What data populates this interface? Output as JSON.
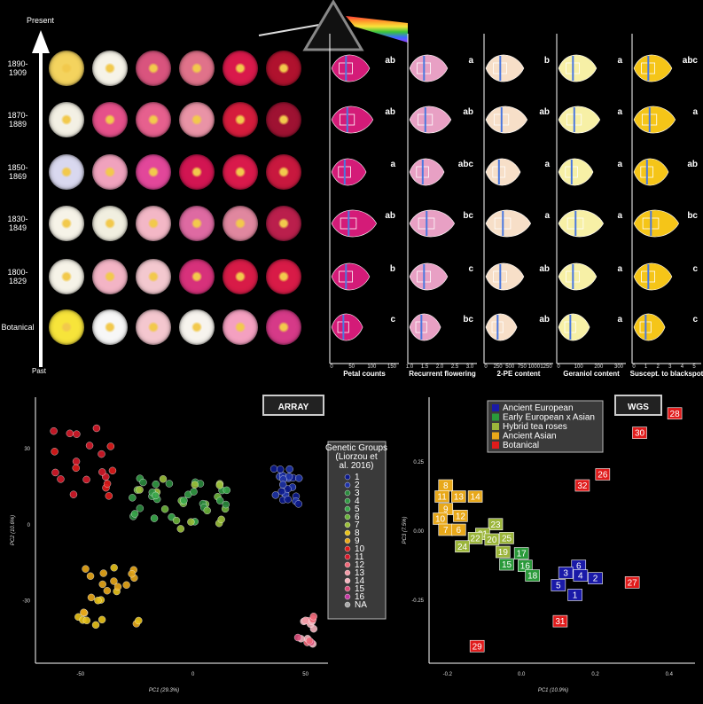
{
  "timeline": {
    "present_label": "Present",
    "past_label": "Past",
    "periods": [
      "1890-\n1909",
      "1870-\n1889",
      "1850-\n1869",
      "1830-\n1849",
      "1800-\n1829",
      "Botanical"
    ]
  },
  "flower_colors": [
    [
      "#f4d35e",
      "#f6f3e8",
      "#d9547e",
      "#e0728a",
      "#d9194b",
      "#b0122e"
    ],
    [
      "#f3f0e4",
      "#e5508a",
      "#e6608e",
      "#e993a6",
      "#d51c3c",
      "#9e1232"
    ],
    [
      "#d9d8ef",
      "#f0a2bd",
      "#e2479a",
      "#d21552",
      "#d9194b",
      "#c8183e"
    ],
    [
      "#f6f3e8",
      "#f1efe0",
      "#f3b7c6",
      "#de6aa2",
      "#e0879f",
      "#ba1f4c"
    ],
    [
      "#f6f3e8",
      "#f3b4c5",
      "#f3c8cf",
      "#d7317b",
      "#d81b47",
      "#d81b47"
    ],
    [
      "#f7e43a",
      "#f7f7f7",
      "#f4c7cf",
      "#f7f4ee",
      "#f4a0c0",
      "#d63a88"
    ]
  ],
  "violins": [
    {
      "name": "petal-counts",
      "label": "Petal counts",
      "fill": "#d41b78",
      "ticks": [
        "0",
        "50",
        "100",
        "150"
      ],
      "letters": [
        "ab",
        "ab",
        "a",
        "ab",
        "b",
        "c"
      ]
    },
    {
      "name": "recurrent-flowering",
      "label": "Recurrent flowering",
      "fill": "#e8a0c4",
      "ticks": [
        "1.0",
        "1.5",
        "2.0",
        "2.5",
        "3.0"
      ],
      "letters": [
        "a",
        "ab",
        "abc",
        "bc",
        "c",
        "bc"
      ]
    },
    {
      "name": "2pe-content",
      "label": "2-PE content",
      "fill": "#f7dfc8",
      "ticks": [
        "0",
        "250",
        "500",
        "750",
        "1000",
        "1250"
      ],
      "letters": [
        "b",
        "ab",
        "a",
        "a",
        "ab",
        "ab"
      ]
    },
    {
      "name": "geraniol-content",
      "label": "Geraniol content",
      "fill": "#f7f0a6",
      "ticks": [
        "0",
        "100",
        "200",
        "300"
      ],
      "letters": [
        "a",
        "a",
        "a",
        "a",
        "a",
        "a"
      ]
    },
    {
      "name": "blackspot",
      "label": "Suscept. to blackspot",
      "fill": "#f5c518",
      "ticks": [
        "0",
        "1",
        "2",
        "3",
        "4",
        "5"
      ],
      "letters": [
        "abc",
        "a",
        "ab",
        "bc",
        "c",
        "c"
      ]
    }
  ],
  "array_plot": {
    "title": "ARRAY",
    "xlabel": "PC1 (29.3%)",
    "ylabel": "PC2 (10.6%)",
    "xticks": [
      "-50",
      "0",
      "50"
    ],
    "yticks": [
      "30",
      "0",
      "-30"
    ],
    "legend_title": "Genetic Groups\n(Liorzou et\nal. 2016)",
    "legend_items": [
      {
        "label": "1",
        "color": "#0c1a8c"
      },
      {
        "label": "2",
        "color": "#1f33a8"
      },
      {
        "label": "3",
        "color": "#2b8a3e"
      },
      {
        "label": "4",
        "color": "#329944"
      },
      {
        "label": "5",
        "color": "#39a84b"
      },
      {
        "label": "6",
        "color": "#6cb33a"
      },
      {
        "label": "7",
        "color": "#9bbf3a"
      },
      {
        "label": "8",
        "color": "#e8c21a"
      },
      {
        "label": "9",
        "color": "#e8a81a"
      },
      {
        "label": "10",
        "color": "#e01b1b"
      },
      {
        "label": "11",
        "color": "#d51a2a"
      },
      {
        "label": "12",
        "color": "#f06a7a"
      },
      {
        "label": "13",
        "color": "#f29aa6"
      },
      {
        "label": "14",
        "color": "#f4b3bd"
      },
      {
        "label": "15",
        "color": "#d94d7a"
      },
      {
        "label": "16",
        "color": "#c43aa2"
      },
      {
        "label": "NA",
        "color": "#aaaaaa"
      }
    ]
  },
  "wgs_plot": {
    "title": "WGS",
    "xlabel": "PC1 (10.9%)",
    "ylabel": "PC3 (7.5%)",
    "xticks": [
      "-0.2",
      "0.0",
      "0.2",
      "0.4"
    ],
    "yticks": [
      "0.25",
      "0.00",
      "-0.25"
    ],
    "legend_items": [
      {
        "label": "Ancient European",
        "color": "#1a1aa8"
      },
      {
        "label": "Early European x Asian",
        "color": "#2a9a3a"
      },
      {
        "label": "Hybrid tea roses",
        "color": "#9bb53a"
      },
      {
        "label": "Ancient Asian",
        "color": "#e8a81a"
      },
      {
        "label": "Botanical",
        "color": "#e01b1b"
      }
    ],
    "points": [
      {
        "id": "28",
        "x": 0.415,
        "y": 0.42,
        "color": "#e01b1b"
      },
      {
        "id": "30",
        "x": 0.32,
        "y": 0.35,
        "color": "#e01b1b"
      },
      {
        "id": "26",
        "x": 0.22,
        "y": 0.2,
        "color": "#e01b1b"
      },
      {
        "id": "32",
        "x": 0.165,
        "y": 0.16,
        "color": "#e01b1b"
      },
      {
        "id": "27",
        "x": 0.3,
        "y": -0.19,
        "color": "#e01b1b"
      },
      {
        "id": "31",
        "x": 0.105,
        "y": -0.33,
        "color": "#e01b1b"
      },
      {
        "id": "29",
        "x": -0.12,
        "y": -0.42,
        "color": "#e01b1b"
      },
      {
        "id": "6",
        "x": 0.155,
        "y": -0.13,
        "color": "#1a1aa8"
      },
      {
        "id": "3",
        "x": 0.12,
        "y": -0.155,
        "color": "#1a1aa8"
      },
      {
        "id": "4",
        "x": 0.16,
        "y": -0.165,
        "color": "#1a1aa8"
      },
      {
        "id": "2",
        "x": 0.2,
        "y": -0.175,
        "color": "#1a1aa8"
      },
      {
        "id": "5",
        "x": 0.1,
        "y": -0.2,
        "color": "#1a1aa8"
      },
      {
        "id": "1",
        "x": 0.145,
        "y": -0.235,
        "color": "#1a1aa8"
      },
      {
        "id": "17",
        "x": 0.0,
        "y": -0.085,
        "color": "#2a9a3a"
      },
      {
        "id": "15",
        "x": -0.04,
        "y": -0.125,
        "color": "#2a9a3a"
      },
      {
        "id": "16",
        "x": 0.01,
        "y": -0.13,
        "color": "#2a9a3a"
      },
      {
        "id": "18",
        "x": 0.03,
        "y": -0.165,
        "color": "#2a9a3a"
      },
      {
        "id": "23",
        "x": -0.07,
        "y": 0.02,
        "color": "#9bb53a"
      },
      {
        "id": "21",
        "x": -0.105,
        "y": -0.015,
        "color": "#9bb53a"
      },
      {
        "id": "22",
        "x": -0.125,
        "y": -0.03,
        "color": "#9bb53a"
      },
      {
        "id": "20",
        "x": -0.08,
        "y": -0.035,
        "color": "#9bb53a"
      },
      {
        "id": "25",
        "x": -0.04,
        "y": -0.03,
        "color": "#9bb53a"
      },
      {
        "id": "19",
        "x": -0.05,
        "y": -0.08,
        "color": "#9bb53a"
      },
      {
        "id": "24",
        "x": -0.16,
        "y": -0.06,
        "color": "#9bb53a"
      },
      {
        "id": "8",
        "x": -0.205,
        "y": 0.16,
        "color": "#e8a81a"
      },
      {
        "id": "11",
        "x": -0.215,
        "y": 0.12,
        "color": "#e8a81a"
      },
      {
        "id": "13",
        "x": -0.17,
        "y": 0.12,
        "color": "#e8a81a"
      },
      {
        "id": "14",
        "x": -0.125,
        "y": 0.12,
        "color": "#e8a81a"
      },
      {
        "id": "9",
        "x": -0.205,
        "y": 0.075,
        "color": "#e8a81a"
      },
      {
        "id": "12",
        "x": -0.165,
        "y": 0.05,
        "color": "#e8a81a"
      },
      {
        "id": "10",
        "x": -0.22,
        "y": 0.04,
        "color": "#e8a81a"
      },
      {
        "id": "7",
        "x": -0.205,
        "y": 0.0,
        "color": "#e8a81a"
      },
      {
        "id": "6",
        "x": -0.17,
        "y": 0.0,
        "color": "#e8a81a"
      }
    ]
  }
}
